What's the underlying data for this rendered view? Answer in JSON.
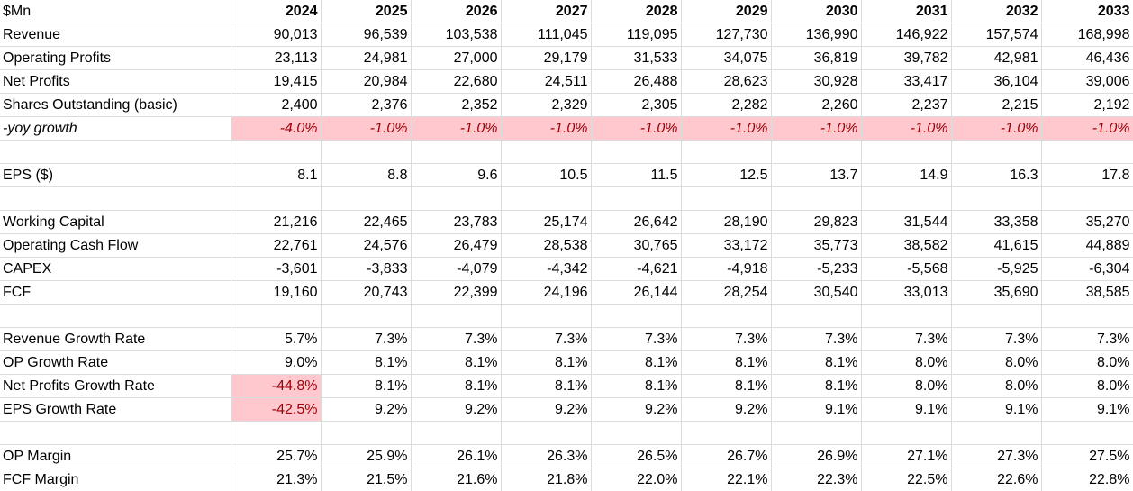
{
  "header": {
    "corner_label": "$Mn",
    "years": [
      "2024",
      "2025",
      "2026",
      "2027",
      "2028",
      "2029",
      "2030",
      "2031",
      "2032",
      "2033"
    ]
  },
  "rows": [
    {
      "label": "Revenue",
      "values": [
        "90,013",
        "96,539",
        "103,538",
        "111,045",
        "119,095",
        "127,730",
        "136,990",
        "146,922",
        "157,574",
        "168,998"
      ]
    },
    {
      "label": "Operating Profits",
      "values": [
        "23,113",
        "24,981",
        "27,000",
        "29,179",
        "31,533",
        "34,075",
        "36,819",
        "39,782",
        "42,981",
        "46,436"
      ]
    },
    {
      "label": "Net Profits",
      "values": [
        "19,415",
        "20,984",
        "22,680",
        "24,511",
        "26,488",
        "28,623",
        "30,928",
        "33,417",
        "36,104",
        "39,006"
      ]
    },
    {
      "label": "Shares Outstanding (basic)",
      "values": [
        "2,400",
        "2,376",
        "2,352",
        "2,329",
        "2,305",
        "2,282",
        "2,260",
        "2,237",
        "2,215",
        "2,192"
      ]
    },
    {
      "label": "-yoy growth",
      "values": [
        "-4.0%",
        "-1.0%",
        "-1.0%",
        "-1.0%",
        "-1.0%",
        "-1.0%",
        "-1.0%",
        "-1.0%",
        "-1.0%",
        "-1.0%"
      ]
    },
    {
      "label": "EPS ($)",
      "values": [
        "8.1",
        "8.8",
        "9.6",
        "10.5",
        "11.5",
        "12.5",
        "13.7",
        "14.9",
        "16.3",
        "17.8"
      ]
    },
    {
      "label": "Working Capital",
      "values": [
        "21,216",
        "22,465",
        "23,783",
        "25,174",
        "26,642",
        "28,190",
        "29,823",
        "31,544",
        "33,358",
        "35,270"
      ]
    },
    {
      "label": "Operating Cash Flow",
      "values": [
        "22,761",
        "24,576",
        "26,479",
        "28,538",
        "30,765",
        "33,172",
        "35,773",
        "38,582",
        "41,615",
        "44,889"
      ]
    },
    {
      "label": "CAPEX",
      "values": [
        "-3,601",
        "-3,833",
        "-4,079",
        "-4,342",
        "-4,621",
        "-4,918",
        "-5,233",
        "-5,568",
        "-5,925",
        "-6,304"
      ]
    },
    {
      "label": "FCF",
      "values": [
        "19,160",
        "20,743",
        "22,399",
        "24,196",
        "26,144",
        "28,254",
        "30,540",
        "33,013",
        "35,690",
        "38,585"
      ]
    },
    {
      "label": "Revenue Growth Rate",
      "values": [
        "5.7%",
        "7.3%",
        "7.3%",
        "7.3%",
        "7.3%",
        "7.3%",
        "7.3%",
        "7.3%",
        "7.3%",
        "7.3%"
      ]
    },
    {
      "label": "OP Growth Rate",
      "values": [
        "9.0%",
        "8.1%",
        "8.1%",
        "8.1%",
        "8.1%",
        "8.1%",
        "8.1%",
        "8.0%",
        "8.0%",
        "8.0%"
      ]
    },
    {
      "label": "Net Profits Growth Rate",
      "values": [
        "-44.8%",
        "8.1%",
        "8.1%",
        "8.1%",
        "8.1%",
        "8.1%",
        "8.1%",
        "8.0%",
        "8.0%",
        "8.0%"
      ]
    },
    {
      "label": "EPS Growth Rate",
      "values": [
        "-42.5%",
        "9.2%",
        "9.2%",
        "9.2%",
        "9.2%",
        "9.2%",
        "9.1%",
        "9.1%",
        "9.1%",
        "9.1%"
      ]
    },
    {
      "label": "OP Margin",
      "values": [
        "25.7%",
        "25.9%",
        "26.1%",
        "26.3%",
        "26.5%",
        "26.7%",
        "26.9%",
        "27.1%",
        "27.3%",
        "27.5%"
      ]
    },
    {
      "label": "FCF Margin",
      "values": [
        "21.3%",
        "21.5%",
        "21.6%",
        "21.8%",
        "22.0%",
        "22.1%",
        "22.3%",
        "22.5%",
        "22.6%",
        "22.8%"
      ]
    }
  ],
  "colors": {
    "highlight_fill": "#ffc7ce",
    "highlight_text": "#9c0006",
    "gridline": "#dcdcdc"
  }
}
